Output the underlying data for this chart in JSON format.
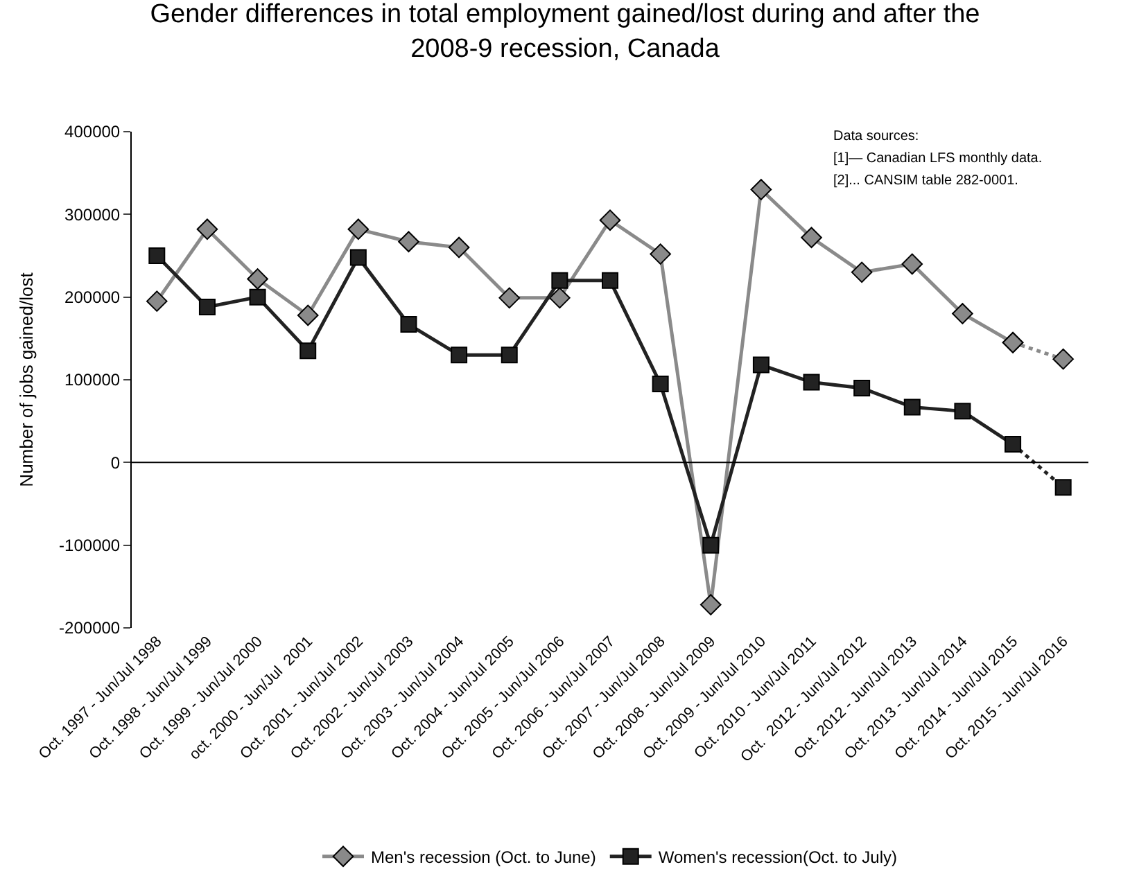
{
  "chart_data": {
    "type": "line",
    "title": "Gender differences in total employment gained/lost during and after the 2008-9 recession, Canada",
    "ylabel": "Number of jobs gained/lost",
    "categories": [
      "Oct. 1997 - Jun/Jul 1998",
      "Oct. 1998 - Jun/Jul 1999",
      "Oct. 1999 - Jun/Jul 2000",
      "oct. 2000 - Jun/Jul  2001",
      "Oct. 2001 - Jun/Jul 2002",
      "Oct. 2002 - Jun/Jul 2003",
      "Oct. 2003 - Jun/Jul 2004",
      "Oct. 2004 - Jun/Jul 2005",
      "Oct. 2005 - Jun/Jul 2006",
      "Oct. 2006 - Jun/Jul 2007",
      "Oct. 2007 - Jun/Jul 2008",
      "Oct. 2008 - Jun/Jul 2009",
      "Oct. 2009 - Jun/Jul 2010",
      "Oct. 2010 - Jun/Jul 2011",
      "Oct.  2012 - Jun/Jul 2012",
      "Oct. 2012 - Jun/Jul 2013",
      "Oct. 2013 - Jun/Jul 2014",
      "Oct. 2014 - Jun/Jul 2015",
      "Oct. 2015 - Jun/Jul 2016"
    ],
    "series": [
      {
        "name": "Men's recession (Oct. to June)",
        "color": "#8a8a8a",
        "marker": "diamond",
        "line_style": "solid",
        "values": [
          195000,
          282000,
          222000,
          178000,
          282000,
          267000,
          260000,
          199000,
          199000,
          293000,
          252000,
          -172000,
          330000,
          272000,
          230000,
          240000,
          180000,
          145000,
          null
        ]
      },
      {
        "name": "Women's recession(Oct. to July)",
        "color": "#222222",
        "marker": "square",
        "line_style": "solid",
        "values": [
          250000,
          188000,
          200000,
          135000,
          248000,
          167000,
          130000,
          130000,
          220000,
          220000,
          95000,
          -100000,
          118000,
          97000,
          90000,
          67000,
          62000,
          22000,
          null
        ]
      },
      {
        "color": "#8a8a8a",
        "marker": "diamond",
        "line_style": "dotted",
        "values": [
          null,
          null,
          null,
          null,
          null,
          null,
          null,
          null,
          null,
          null,
          null,
          null,
          null,
          null,
          null,
          null,
          null,
          145000,
          125000
        ]
      },
      {
        "color": "#222222",
        "marker": "square",
        "line_style": "dotted",
        "values": [
          null,
          null,
          null,
          null,
          null,
          null,
          null,
          null,
          null,
          null,
          null,
          null,
          null,
          null,
          null,
          null,
          null,
          22000,
          -30000
        ]
      }
    ],
    "ylim": [
      -200000,
      400000
    ],
    "yticks": [
      -200000,
      -100000,
      0,
      100000,
      200000,
      300000,
      400000
    ],
    "ref_lines": [
      {
        "axis": "y",
        "value": 0,
        "color": "#000000",
        "line_style": "solid"
      }
    ],
    "legend": "bottom",
    "annotations": [
      "Data sources:",
      "[1]— Canadian LFS monthly data.",
      "[2]... CANSIM table 282-0001."
    ]
  }
}
